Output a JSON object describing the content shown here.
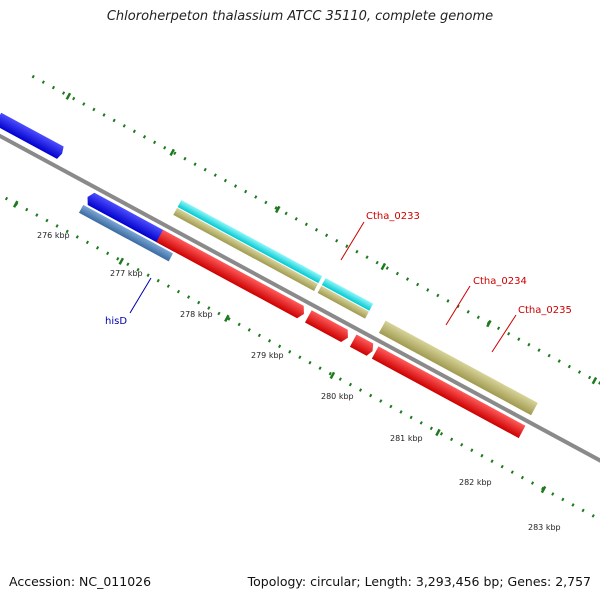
{
  "title": "Chloroherpeton thalassium ATCC 35110, complete genome",
  "accession": "Accession: NC_011026",
  "summary": "Topology: circular; Length: 3,293,456 bp; Genes: 2,757",
  "kbp_labels": [
    "276 kbp",
    "277 kbp",
    "278 kbp",
    "279 kbp",
    "280 kbp",
    "281 kbp",
    "282 kbp",
    "283 kbp"
  ],
  "gene_labels": {
    "hisD": "hisD",
    "cth233": "Ctha_0233",
    "cth234": "Ctha_0234",
    "cth235": "Ctha_0235"
  },
  "colors": {
    "backbone": "#8a8a8a",
    "ticks": "#1e7a1e",
    "blue": "#0000ee",
    "steelblue": "#4a7fb8",
    "cyan": "#00e5ee",
    "khaki": "#bdb76b",
    "red": "#ee0000",
    "label_blue": "#0000aa",
    "label_red": "#cc0000"
  }
}
